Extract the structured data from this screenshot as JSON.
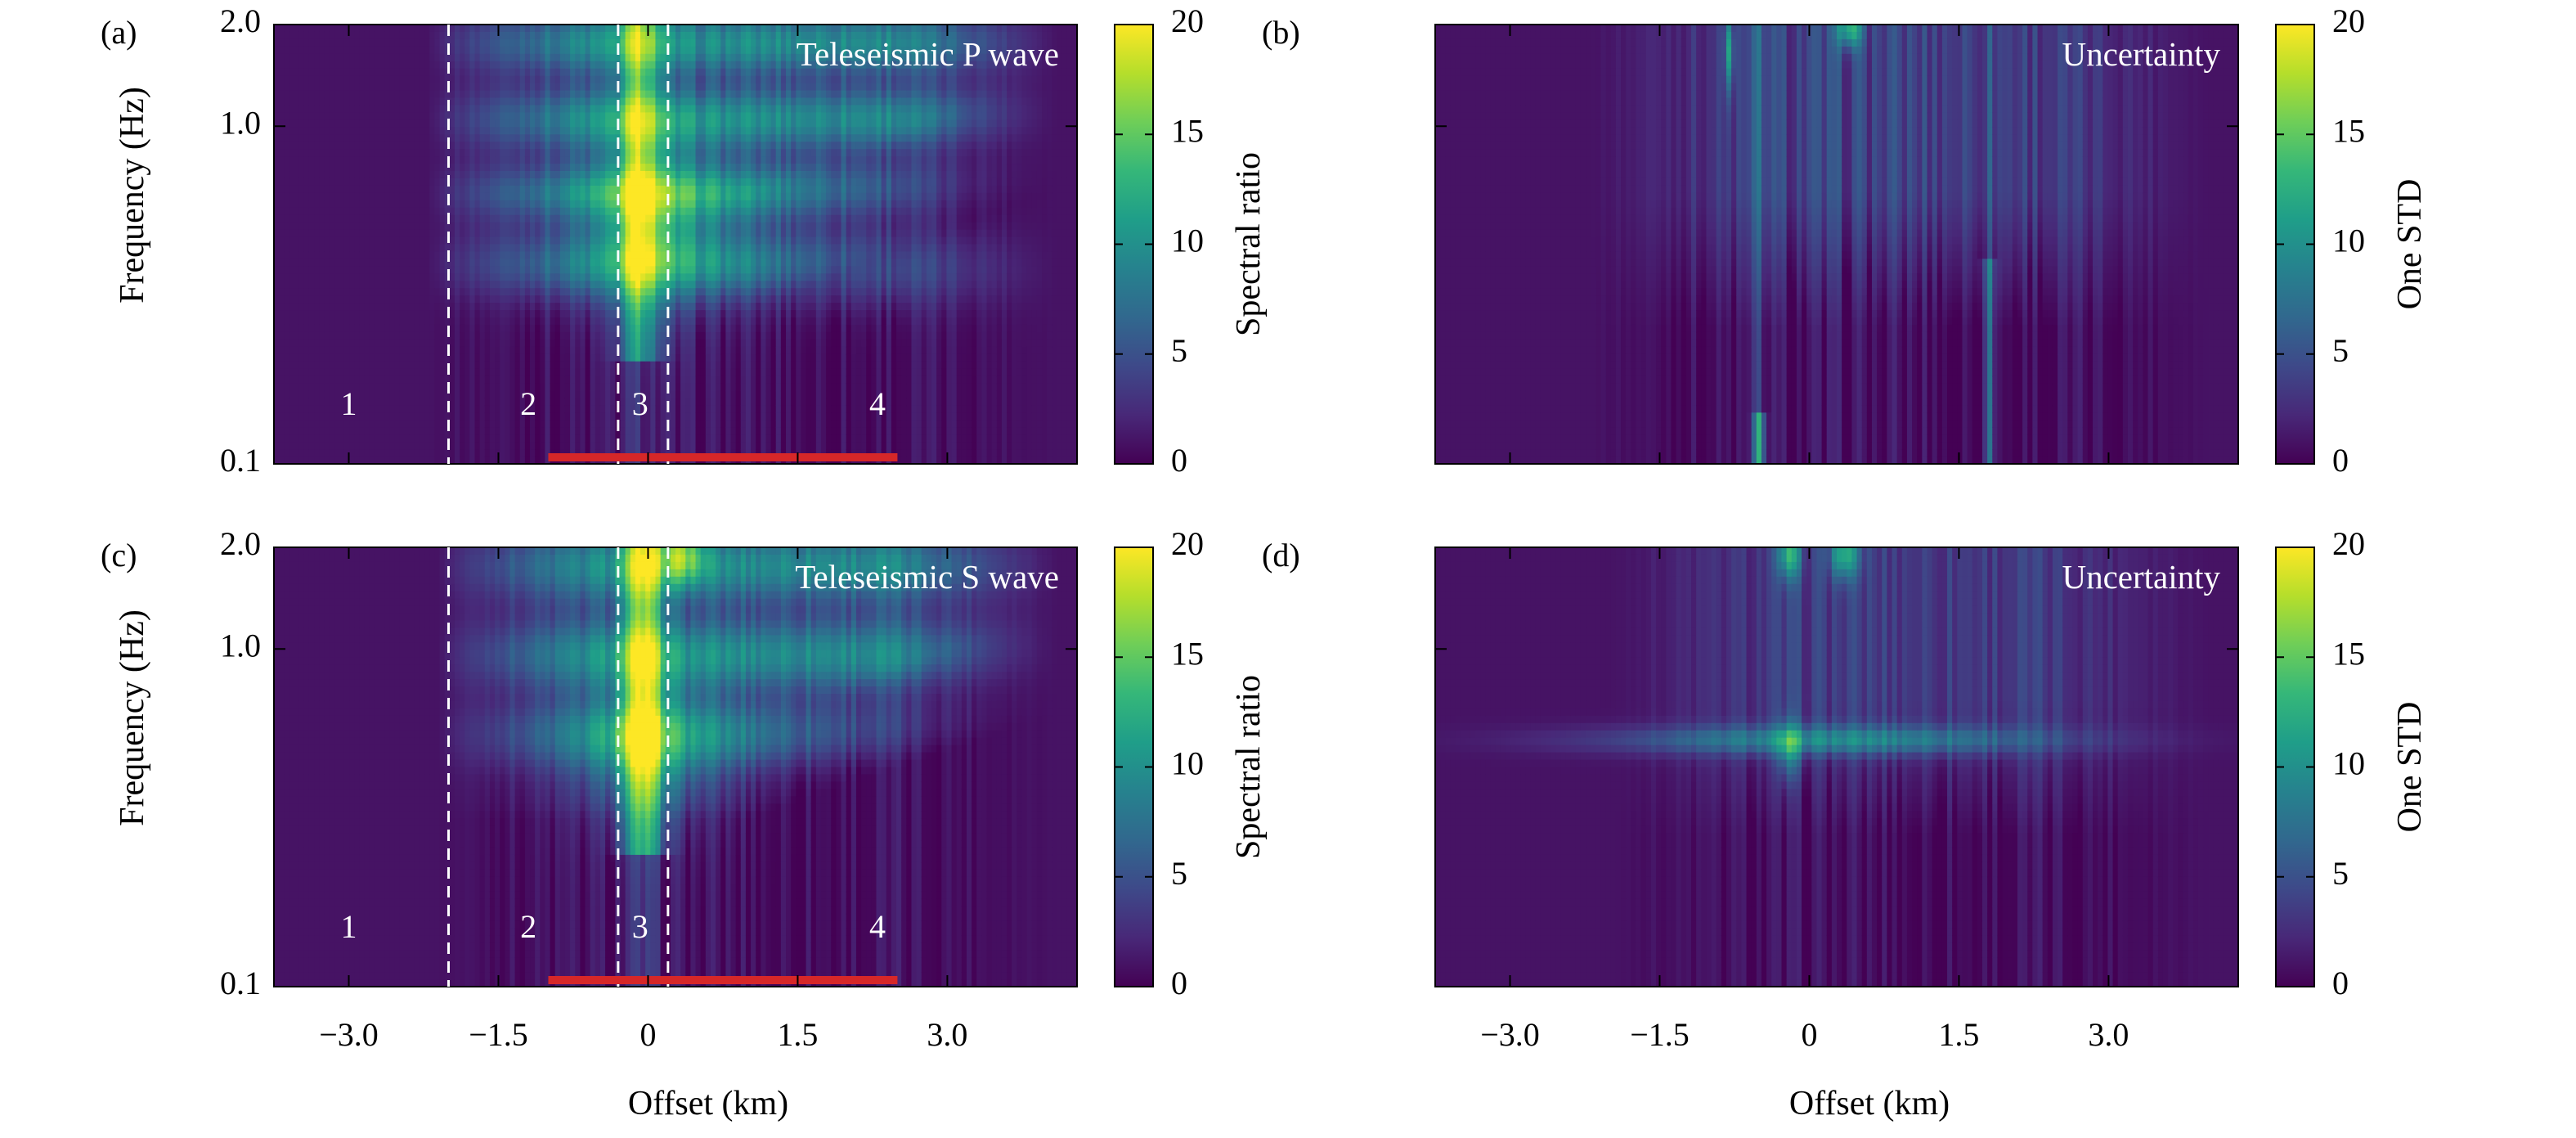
{
  "figure": {
    "xlabel": "Offset (km)",
    "ylabel": "Frequency (Hz)",
    "colormap": [
      "#440154",
      "#482878",
      "#3e4989",
      "#31688e",
      "#26828e",
      "#1f9e89",
      "#35b779",
      "#6ece58",
      "#b5de2b",
      "#fde725"
    ]
  },
  "chart_data": [
    {
      "type": "heatmap",
      "panel": "(a)",
      "inset_label": "Teleseismic P wave",
      "colorbar_label": "Spectral ratio",
      "colorbar_ticks": [
        "0",
        "5",
        "10",
        "15",
        "20"
      ],
      "clim": [
        0,
        20
      ],
      "xlim": [
        -3.75,
        4.3
      ],
      "ylim": [
        0.1,
        2.0
      ],
      "yscale": "log",
      "x_ticks": [
        -3.0,
        -1.5,
        0,
        1.5,
        3.0
      ],
      "x_tick_labels": [
        "",
        "",
        "",
        "",
        ""
      ],
      "y_ticks": [
        0.1,
        1.0,
        2.0
      ],
      "y_tick_labels": [
        "0.1",
        "1.0",
        "2.0"
      ],
      "show_ylabel": true,
      "show_xlabel": false,
      "dashed_lines_x": [
        -2.0,
        -0.3,
        0.2
      ],
      "zone_labels": [
        {
          "x": -3.0,
          "text": "1"
        },
        {
          "x": -1.2,
          "text": "2"
        },
        {
          "x": -0.08,
          "text": "3"
        },
        {
          "x": 2.3,
          "text": "4"
        }
      ],
      "red_bar": [
        -1.0,
        2.5
      ],
      "red_bar_ticks": [
        0.0,
        1.5
      ],
      "field": "signal"
    },
    {
      "type": "heatmap",
      "panel": "(b)",
      "inset_label": "Uncertainty",
      "colorbar_label": "One STD",
      "colorbar_ticks": [
        "0",
        "5",
        "10",
        "15",
        "20"
      ],
      "clim": [
        0,
        20
      ],
      "xlim": [
        -3.75,
        4.3
      ],
      "ylim": [
        0.1,
        2.0
      ],
      "yscale": "log",
      "x_ticks": [
        -3.0,
        -1.5,
        0,
        1.5,
        3.0
      ],
      "x_tick_labels": [
        "",
        "",
        "",
        "",
        ""
      ],
      "y_ticks": [
        0.1,
        1.0,
        2.0
      ],
      "y_tick_labels": [
        "",
        "",
        ""
      ],
      "show_ylabel": false,
      "show_xlabel": false,
      "field": "uncertainty"
    },
    {
      "type": "heatmap",
      "panel": "(c)",
      "inset_label": "Teleseismic S wave",
      "colorbar_label": "Spectral ratio",
      "colorbar_ticks": [
        "0",
        "5",
        "10",
        "15",
        "20"
      ],
      "clim": [
        0,
        20
      ],
      "xlim": [
        -3.75,
        4.3
      ],
      "ylim": [
        0.1,
        2.0
      ],
      "yscale": "log",
      "x_ticks": [
        -3.0,
        -1.5,
        0,
        1.5,
        3.0
      ],
      "x_tick_labels": [
        "−3.0",
        "−1.5",
        "0",
        "1.5",
        "3.0"
      ],
      "y_ticks": [
        0.1,
        1.0,
        2.0
      ],
      "y_tick_labels": [
        "0.1",
        "1.0",
        "2.0"
      ],
      "show_ylabel": true,
      "show_xlabel": true,
      "dashed_lines_x": [
        -2.0,
        -0.3,
        0.2
      ],
      "zone_labels": [
        {
          "x": -3.0,
          "text": "1"
        },
        {
          "x": -1.2,
          "text": "2"
        },
        {
          "x": -0.08,
          "text": "3"
        },
        {
          "x": 2.3,
          "text": "4"
        }
      ],
      "red_bar": [
        -1.0,
        2.5
      ],
      "red_bar_ticks": [
        0.0,
        1.5
      ],
      "field": "signal_s"
    },
    {
      "type": "heatmap",
      "panel": "(d)",
      "inset_label": "Uncertainty",
      "colorbar_label": "One STD",
      "colorbar_ticks": [
        "0",
        "5",
        "10",
        "15",
        "20"
      ],
      "clim": [
        0,
        20
      ],
      "xlim": [
        -3.75,
        4.3
      ],
      "ylim": [
        0.1,
        2.0
      ],
      "yscale": "log",
      "x_ticks": [
        -3.0,
        -1.5,
        0,
        1.5,
        3.0
      ],
      "x_tick_labels": [
        "−3.0",
        "−1.5",
        "0",
        "1.5",
        "3.0"
      ],
      "y_ticks": [
        0.1,
        1.0,
        2.0
      ],
      "y_tick_labels": [
        "",
        "",
        ""
      ],
      "show_ylabel": false,
      "show_xlabel": true,
      "field": "uncertainty_s"
    }
  ]
}
